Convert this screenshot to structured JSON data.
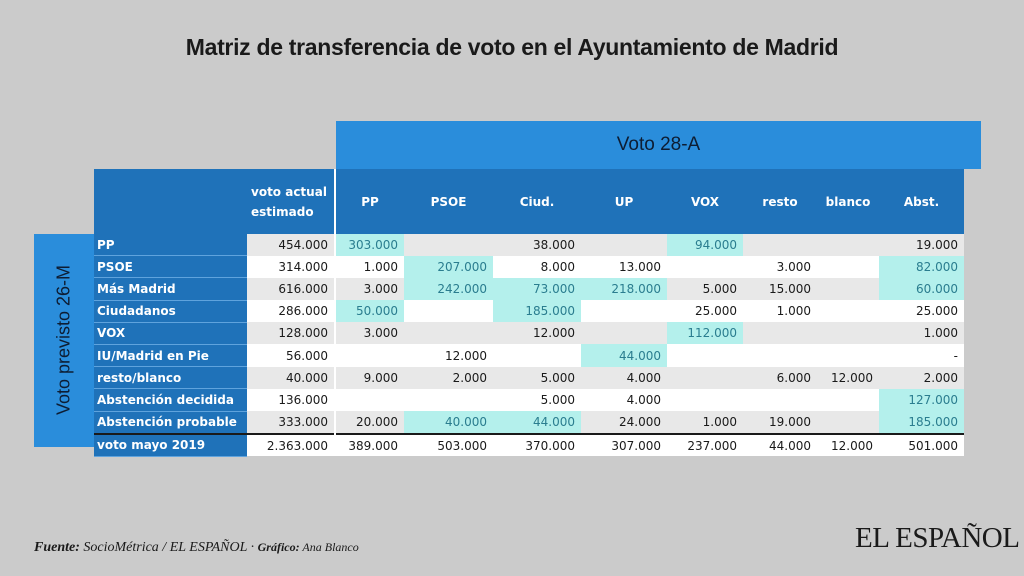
{
  "title": "Matriz de transferencia de voto en el Ayuntamiento de Madrid",
  "chart_data": {
    "type": "table",
    "column_group_label": "Voto 28-A",
    "row_group_label": "Voto previsto 26-M",
    "estimate_header": "voto actual estimado",
    "columns": [
      "PP",
      "PSOE",
      "Ciud.",
      "UP",
      "VOX",
      "resto",
      "blanco",
      "Abst."
    ],
    "rows": [
      {
        "label": "PP",
        "estimate": "454.000",
        "values": [
          "303.000",
          "",
          "38.000",
          "",
          "94.000",
          "",
          "",
          "19.000"
        ],
        "highlight": [
          0,
          4
        ]
      },
      {
        "label": "PSOE",
        "estimate": "314.000",
        "values": [
          "1.000",
          "207.000",
          "8.000",
          "13.000",
          "",
          "3.000",
          "",
          "82.000"
        ],
        "highlight": [
          1,
          7
        ]
      },
      {
        "label": "Más Madrid",
        "estimate": "616.000",
        "values": [
          "3.000",
          "242.000",
          "73.000",
          "218.000",
          "5.000",
          "15.000",
          "",
          "60.000"
        ],
        "highlight": [
          1,
          2,
          3,
          7
        ]
      },
      {
        "label": "Ciudadanos",
        "estimate": "286.000",
        "values": [
          "50.000",
          "",
          "185.000",
          "",
          "25.000",
          "1.000",
          "",
          "25.000"
        ],
        "highlight": [
          0,
          2
        ]
      },
      {
        "label": "VOX",
        "estimate": "128.000",
        "values": [
          "3.000",
          "",
          "12.000",
          "",
          "112.000",
          "",
          "",
          "1.000"
        ],
        "highlight": [
          4
        ]
      },
      {
        "label": "IU/Madrid en Pie",
        "estimate": "56.000",
        "values": [
          "",
          "12.000",
          "",
          "44.000",
          "",
          "",
          "",
          "-"
        ],
        "highlight": [
          3
        ]
      },
      {
        "label": "resto/blanco",
        "estimate": "40.000",
        "values": [
          "9.000",
          "2.000",
          "5.000",
          "4.000",
          "",
          "6.000",
          "12.000",
          "2.000"
        ],
        "highlight": []
      },
      {
        "label": " Abstención decidida",
        "estimate": "136.000",
        "values": [
          "",
          "",
          "5.000",
          "4.000",
          "",
          "",
          "",
          "127.000"
        ],
        "highlight": [
          7
        ]
      },
      {
        "label": "Abstención probable",
        "estimate": "333.000",
        "values": [
          "20.000",
          "40.000",
          "44.000",
          "24.000",
          "1.000",
          "19.000",
          "",
          "185.000"
        ],
        "highlight": [
          1,
          2,
          7
        ]
      }
    ],
    "total": {
      "label": "voto mayo 2019",
      "estimate": "2.363.000",
      "values": [
        "389.000",
        "503.000",
        "370.000",
        "307.000",
        "237.000",
        "44.000",
        "12.000",
        "501.000"
      ]
    },
    "colors": {
      "header": "#1f72b9",
      "group_header": "#2a8ddb",
      "highlight": "#b4f0ec",
      "highlight_text": "#2a7d8f"
    }
  },
  "source": {
    "label": "Fuente:",
    "text": " SocioMétrica / EL ESPAÑOL · ",
    "graphic_label": "Gráfico:",
    "graphic_author": " Ana Blanco"
  },
  "logo": "EL ESPAÑOL"
}
